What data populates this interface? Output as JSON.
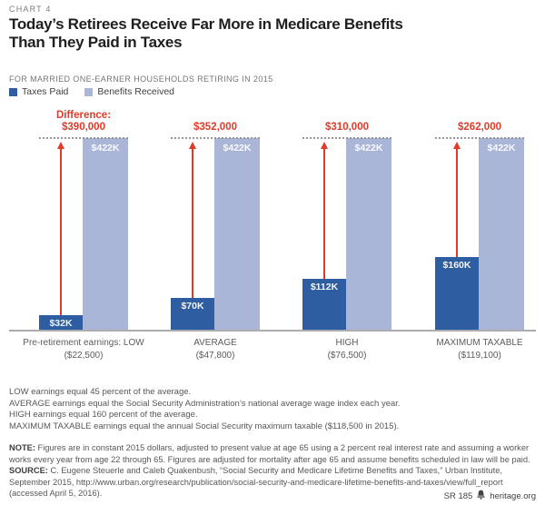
{
  "header": {
    "kicker": "CHART 4",
    "title_line1": "Today’s Retirees Receive Far More in Medicare Benefits",
    "title_line2": "Than They Paid in Taxes",
    "subtitle": "FOR MARRIED ONE-EARNER HOUSEHOLDS RETIRING IN 2015"
  },
  "legend": [
    {
      "label": "Taxes Paid",
      "color": "#2e5da1"
    },
    {
      "label": "Benefits Received",
      "color": "#aab6d7"
    }
  ],
  "chart_data": {
    "type": "bar",
    "title": "Today’s Retirees Receive Far More in Medicare Benefits Than They Paid in Taxes",
    "subtitle": "FOR MARRIED ONE-EARNER HOUSEHOLDS RETIRING IN 2015",
    "categories": [
      "Pre-retirement earnings: LOW",
      "AVERAGE",
      "HIGH",
      "MAXIMUM TAXABLE"
    ],
    "category_sublabels": [
      "($22,500)",
      "($47,800)",
      "($76,500)",
      "($119,100)"
    ],
    "series": [
      {
        "name": "Taxes Paid",
        "color": "#2e5da1",
        "values": [
          32000,
          70000,
          112000,
          160000
        ],
        "value_labels": [
          "$32K",
          "$70K",
          "$112K",
          "$160K"
        ]
      },
      {
        "name": "Benefits Received",
        "color": "#aab6d7",
        "values": [
          422000,
          422000,
          422000,
          422000
        ],
        "value_labels": [
          "$422K",
          "$422K",
          "$422K",
          "$422K"
        ]
      }
    ],
    "difference_title": "Difference:",
    "differences": [
      390000,
      352000,
      310000,
      262000
    ],
    "difference_labels": [
      "$390,000",
      "$352,000",
      "$310,000",
      "$262,000"
    ],
    "difference_color": "#e03a28",
    "ylim": [
      0,
      422000
    ],
    "grid": false,
    "legend_position": "top-left",
    "xlabel": "",
    "ylabel": ""
  },
  "footnotes": [
    "LOW earnings equal 45 percent of the average.",
    "AVERAGE earnings equal the Social Security Administration’s national average wage index each year.",
    "HIGH earnings equal 160 percent of the average.",
    "MAXIMUM TAXABLE earnings equal the annual Social Security maximum taxable ($118,500 in 2015)."
  ],
  "note": {
    "label": "NOTE:",
    "text": "Figures are in constant 2015 dollars, adjusted to present value at age 65 using a 2 percent real interest rate and assuming a worker works every year from age 22 through 65. Figures are adjusted for mortality after age 65 and assume benefits scheduled in law will be paid."
  },
  "source": {
    "label": "SOURCE:",
    "text": "C. Eugene Steuerle and Caleb Quakenbush, “Social Security and Medicare Lifetime Benefits and Taxes,” Urban Institute, September 2015, http://www.urban.org/research/publication/social-security-and-medicare-lifetime-benefits-and-taxes/view/full_report (accessed April 5, 2016)."
  },
  "footer": {
    "id": "SR 185",
    "site": "heritage.org"
  }
}
